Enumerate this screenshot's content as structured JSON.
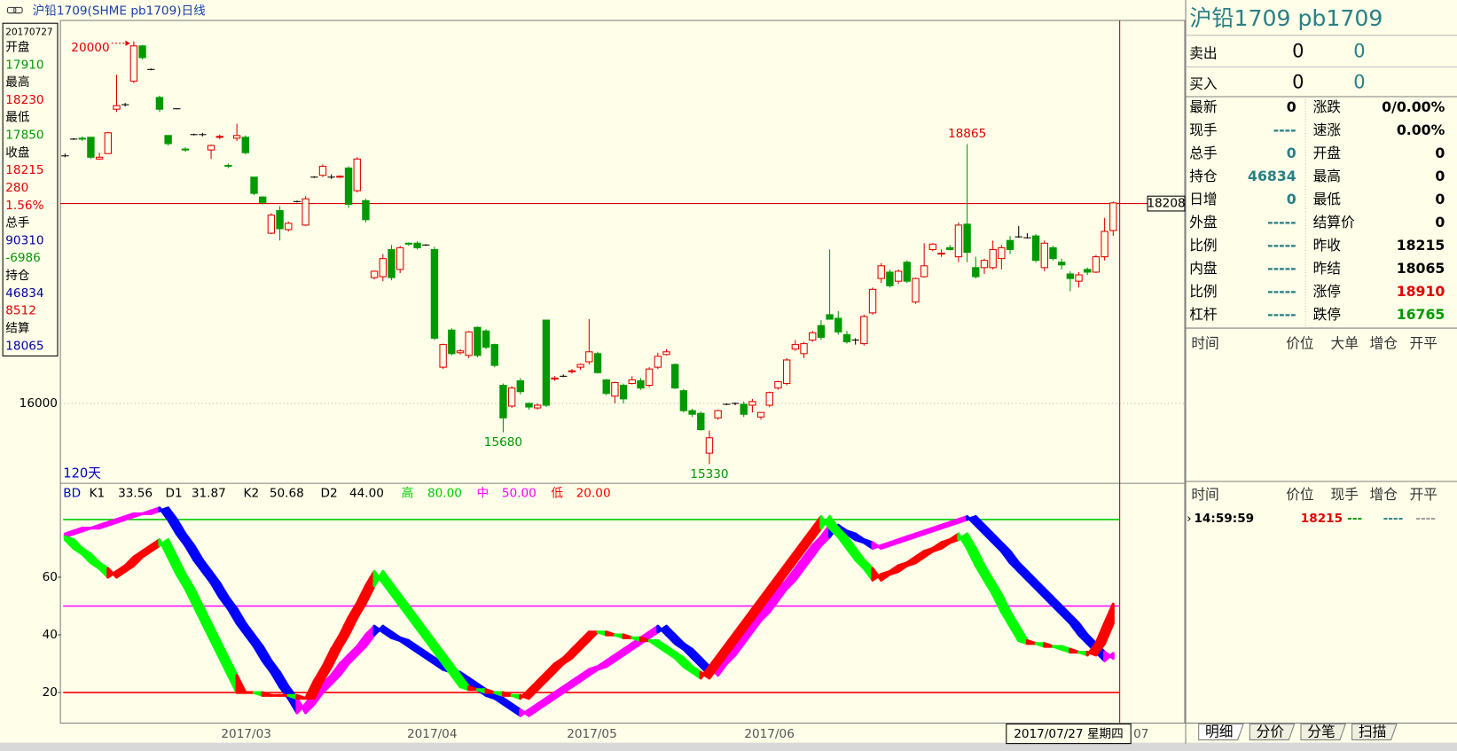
{
  "window_title": "沪铅1709(SHME pb1709)日线",
  "info_box": {
    "date": "20170727",
    "rows": [
      {
        "text": "开盘",
        "color": "#000000"
      },
      {
        "text": 17910,
        "color": "#009900"
      },
      {
        "text": "最高",
        "color": "#000000"
      },
      {
        "text": 18230,
        "color": "#e00000"
      },
      {
        "text": "最低",
        "color": "#000000"
      },
      {
        "text": 17850,
        "color": "#009900"
      },
      {
        "text": "收盘",
        "color": "#000000"
      },
      {
        "text": 18215,
        "color": "#e00000"
      },
      {
        "text": 280,
        "color": "#e00000"
      },
      {
        "text": "1.56%",
        "color": "#e00000"
      },
      {
        "text": "总手",
        "color": "#000000"
      },
      {
        "text": 90310,
        "color": "#0000a0"
      },
      {
        "text": -6986,
        "color": "#009900"
      },
      {
        "text": "持仓",
        "color": "#000000"
      },
      {
        "text": 46834,
        "color": "#0000a0"
      },
      {
        "text": 8512,
        "color": "#e00000"
      },
      {
        "text": "结算",
        "color": "#000000"
      },
      {
        "text": 18065,
        "color": "#0000a0"
      }
    ]
  },
  "chart": {
    "days_label": "120天",
    "ylim": [
      15117,
      20231
    ],
    "yticks": [
      16000
    ],
    "up_color": "#e00000",
    "down_color": "#009900",
    "price_line": 18208,
    "annotations": [
      {
        "value": 20000,
        "color": "#e00000",
        "arrow": true
      },
      {
        "value": 18865,
        "color": "#e00000"
      },
      {
        "value": 15680,
        "color": "#009900"
      },
      {
        "value": 15330,
        "color": "#009900"
      }
    ],
    "xlabels": [
      "2017/03",
      "2017/04",
      "2017/05",
      "2017/06",
      "07"
    ],
    "cursor_date": "2017/07/27 星期四",
    "candles": [
      [
        18735,
        18760,
        18720,
        18735
      ],
      [
        18920,
        18930,
        18910,
        18920
      ],
      [
        18930,
        18950,
        18900,
        18920
      ],
      [
        18940,
        18940,
        18700,
        18720
      ],
      [
        18700,
        18770,
        18690,
        18720
      ],
      [
        18760,
        19000,
        18760,
        18990
      ],
      [
        19250,
        19630,
        19220,
        19290
      ],
      [
        19300,
        19320,
        19280,
        19300
      ],
      [
        19560,
        20000,
        19540,
        19950
      ],
      [
        19950,
        19960,
        19800,
        19820
      ],
      [
        19690,
        19700,
        19680,
        19690
      ],
      [
        19380,
        19400,
        19220,
        19250
      ],
      [
        18960,
        18960,
        18850,
        18870
      ],
      [
        19255,
        19260,
        19250,
        19255
      ],
      [
        18810,
        18830,
        18780,
        18800
      ],
      [
        18970,
        18980,
        18960,
        18970
      ],
      [
        18970,
        18990,
        18950,
        18970
      ],
      [
        18800,
        18860,
        18700,
        18850
      ],
      [
        18940,
        18970,
        18920,
        18950
      ],
      [
        18630,
        18650,
        18600,
        18620
      ],
      [
        18930,
        19090,
        18900,
        18960
      ],
      [
        18940,
        18960,
        18750,
        18770
      ],
      [
        18500,
        18500,
        18300,
        18320
      ],
      [
        18280,
        18290,
        18200,
        18220
      ],
      [
        17880,
        18100,
        17870,
        18080
      ],
      [
        18130,
        18180,
        17800,
        17930
      ],
      [
        17920,
        18010,
        17900,
        17990
      ],
      [
        18230,
        18240,
        18220,
        18230
      ],
      [
        17970,
        18290,
        17960,
        18260
      ],
      [
        18500,
        18510,
        18490,
        18500
      ],
      [
        18520,
        18640,
        18500,
        18620
      ],
      [
        18500,
        18530,
        18480,
        18500
      ],
      [
        18500,
        18520,
        18490,
        18510
      ],
      [
        18600,
        18620,
        18160,
        18200
      ],
      [
        18350,
        18720,
        18330,
        18700
      ],
      [
        18240,
        18260,
        18000,
        18030
      ],
      [
        17390,
        17470,
        17370,
        17460
      ],
      [
        17400,
        17650,
        17350,
        17600
      ],
      [
        17700,
        17750,
        17360,
        17390
      ],
      [
        17480,
        17740,
        17440,
        17720
      ],
      [
        17770,
        17780,
        17740,
        17760
      ],
      [
        17770,
        17790,
        17700,
        17720
      ],
      [
        17750,
        17760,
        17740,
        17750
      ],
      [
        17700,
        17730,
        16700,
        16720
      ],
      [
        16400,
        16660,
        16380,
        16650
      ],
      [
        16810,
        16830,
        16530,
        16550
      ],
      [
        16560,
        16600,
        16540,
        16580
      ],
      [
        16530,
        16800,
        16500,
        16790
      ],
      [
        16840,
        16850,
        16510,
        16530
      ],
      [
        16800,
        16820,
        16600,
        16620
      ],
      [
        16650,
        16660,
        16400,
        16420
      ],
      [
        16200,
        16220,
        15680,
        15840
      ],
      [
        15970,
        16190,
        15950,
        16170
      ],
      [
        16250,
        16280,
        16100,
        16130
      ],
      [
        16000,
        16010,
        15930,
        15960
      ],
      [
        15950,
        16000,
        15930,
        15980
      ],
      [
        16920,
        16920,
        15960,
        15980
      ],
      [
        16270,
        16300,
        16250,
        16280
      ],
      [
        16300,
        16320,
        16290,
        16300
      ],
      [
        16350,
        16380,
        16330,
        16360
      ],
      [
        16400,
        16440,
        16370,
        16430
      ],
      [
        16460,
        16930,
        16430,
        16570
      ],
      [
        16550,
        16570,
        16330,
        16340
      ],
      [
        16260,
        16270,
        16090,
        16110
      ],
      [
        16080,
        16240,
        16000,
        16230
      ],
      [
        16200,
        16220,
        16000,
        16050
      ],
      [
        16220,
        16300,
        16210,
        16260
      ],
      [
        16250,
        16280,
        16150,
        16170
      ],
      [
        16200,
        16400,
        16180,
        16380
      ],
      [
        16400,
        16560,
        16380,
        16520
      ],
      [
        16540,
        16600,
        16530,
        16570
      ],
      [
        16430,
        16440,
        16160,
        16170
      ],
      [
        16140,
        16160,
        15900,
        15920
      ],
      [
        15920,
        15940,
        15850,
        15880
      ],
      [
        15890,
        15910,
        15700,
        15710
      ],
      [
        15450,
        15700,
        15330,
        15620
      ],
      [
        15840,
        15930,
        15820,
        15920
      ],
      [
        15990,
        16000,
        15980,
        15990
      ],
      [
        16000,
        16010,
        15980,
        16000
      ],
      [
        15990,
        16020,
        15850,
        15880
      ],
      [
        15980,
        16050,
        15900,
        16020
      ],
      [
        15850,
        15900,
        15820,
        15900
      ],
      [
        15980,
        16130,
        15960,
        16120
      ],
      [
        16170,
        16250,
        16150,
        16240
      ],
      [
        16220,
        16500,
        16200,
        16480
      ],
      [
        16600,
        16700,
        16580,
        16650
      ],
      [
        16550,
        16680,
        16500,
        16660
      ],
      [
        16700,
        16800,
        16680,
        16780
      ],
      [
        16860,
        16920,
        16700,
        16730
      ],
      [
        16980,
        17700,
        16950,
        16930
      ],
      [
        16940,
        17020,
        16760,
        16790
      ],
      [
        16760,
        16800,
        16660,
        16680
      ],
      [
        16700,
        16720,
        16650,
        16700
      ],
      [
        16660,
        16980,
        16640,
        16960
      ],
      [
        17000,
        17280,
        16980,
        17260
      ],
      [
        17380,
        17550,
        17330,
        17520
      ],
      [
        17450,
        17480,
        17280,
        17300
      ],
      [
        17350,
        17480,
        17320,
        17460
      ],
      [
        17560,
        17580,
        17330,
        17350
      ],
      [
        17120,
        17390,
        17100,
        17380
      ],
      [
        17400,
        17770,
        17390,
        17520
      ],
      [
        17700,
        17770,
        17680,
        17760
      ],
      [
        17650,
        17700,
        17620,
        17660
      ],
      [
        17720,
        17750,
        17690,
        17700
      ],
      [
        17620,
        18000,
        17560,
        17970
      ],
      [
        17980,
        18865,
        17560,
        17670
      ],
      [
        17500,
        17620,
        17380,
        17400
      ],
      [
        17500,
        17600,
        17430,
        17580
      ],
      [
        17500,
        17800,
        17480,
        17700
      ],
      [
        17600,
        17750,
        17480,
        17720
      ],
      [
        17800,
        17850,
        17650,
        17700
      ],
      [
        17840,
        17960,
        17830,
        17840
      ],
      [
        17830,
        17880,
        17820,
        17830
      ],
      [
        17850,
        17870,
        17560,
        17580
      ],
      [
        17500,
        17800,
        17460,
        17770
      ],
      [
        17720,
        17740,
        17580,
        17600
      ],
      [
        17560,
        17600,
        17480,
        17530
      ],
      [
        17430,
        17460,
        17240,
        17380
      ],
      [
        17350,
        17450,
        17280,
        17420
      ],
      [
        17480,
        17500,
        17420,
        17450
      ],
      [
        17450,
        17640,
        17440,
        17620
      ],
      [
        17620,
        18050,
        17580,
        17900
      ],
      [
        17910,
        18230,
        17850,
        18215
      ]
    ]
  },
  "indicator": {
    "name": "BD",
    "params": [
      {
        "name": "K1",
        "value": 33.56
      },
      {
        "name": "D1",
        "value": 31.87
      },
      {
        "name": "K2",
        "value": 50.68
      },
      {
        "name": "D2",
        "value": {
          "value": 44,
          "label": "44.00"
        }
      }
    ],
    "levels": [
      {
        "name": "高",
        "value": {
          "value": 80,
          "label": "80.00"
        },
        "color": "#00cc00"
      },
      {
        "name": "中",
        "value": {
          "value": 50,
          "label": "50.00"
        },
        "color": "#ff00ff"
      },
      {
        "name": "低",
        "value": {
          "value": 20,
          "label": "20.00"
        },
        "color": "#ff0000"
      }
    ],
    "ylim": [
      9.4,
      86.1
    ],
    "yticks": [
      20,
      40,
      60
    ],
    "k1_colors": [
      "#ff00ff",
      "#0000ff"
    ],
    "k2_colors": [
      "#ff0000",
      "#00ff00"
    ],
    "k1": [
      75,
      76,
      77,
      77,
      78,
      79,
      80,
      81,
      82,
      82,
      83,
      84,
      80,
      75,
      71,
      66,
      62,
      58,
      53,
      49,
      44,
      40,
      36,
      31,
      27,
      22,
      18,
      13,
      16,
      20,
      23,
      26,
      30,
      33,
      36,
      40,
      43,
      41,
      39,
      38,
      36,
      34,
      32,
      30,
      28,
      27,
      25,
      23,
      21,
      19,
      18,
      16,
      14,
      12,
      14,
      16,
      18,
      20,
      22,
      24,
      26,
      28,
      29,
      31,
      33,
      35,
      37,
      39,
      41,
      43,
      40,
      37,
      35,
      32,
      29,
      26,
      30,
      33,
      37,
      41,
      45,
      48,
      52,
      56,
      59,
      63,
      67,
      71,
      74,
      78,
      76,
      75,
      73,
      72,
      70,
      71,
      72,
      73,
      74,
      75,
      76,
      77,
      78,
      79,
      80,
      81,
      78,
      75,
      72,
      69,
      65,
      62,
      59,
      56,
      53,
      50,
      47,
      44,
      40,
      37,
      34,
      31,
      33.56
    ],
    "d1": [
      74,
      75,
      76,
      77,
      77,
      78,
      79,
      80,
      81,
      82,
      82,
      83,
      84,
      80,
      75,
      71,
      66,
      62,
      58,
      53,
      49,
      44,
      40,
      36,
      31,
      27,
      22,
      18,
      13,
      16,
      20,
      23,
      26,
      30,
      33,
      36,
      40,
      43,
      41,
      39,
      38,
      36,
      34,
      32,
      30,
      28,
      27,
      25,
      23,
      21,
      19,
      18,
      16,
      14,
      12,
      14,
      16,
      18,
      20,
      22,
      24,
      26,
      28,
      29,
      31,
      33,
      35,
      37,
      39,
      41,
      43,
      40,
      37,
      35,
      32,
      29,
      26,
      30,
      33,
      37,
      41,
      45,
      48,
      52,
      56,
      59,
      63,
      67,
      71,
      74,
      78,
      76,
      75,
      73,
      72,
      70,
      71,
      72,
      73,
      74,
      75,
      76,
      77,
      78,
      79,
      80,
      81,
      78,
      75,
      72,
      69,
      65,
      62,
      59,
      56,
      53,
      50,
      47,
      44,
      40,
      37,
      34,
      31.87
    ],
    "k2": [
      73,
      70,
      68,
      65,
      63,
      60,
      62,
      64,
      67,
      69,
      71,
      73,
      67,
      61,
      56,
      50,
      44,
      38,
      32,
      26,
      20,
      20,
      20,
      19,
      19,
      19,
      19,
      18,
      18,
      24,
      29,
      35,
      40,
      46,
      51,
      57,
      62,
      58,
      54,
      50,
      46,
      42,
      38,
      34,
      30,
      26,
      22,
      21,
      21,
      20,
      20,
      19,
      19,
      18,
      21,
      24,
      27,
      30,
      32,
      35,
      38,
      41,
      41,
      40,
      40,
      39,
      39,
      38,
      38,
      36,
      34,
      32,
      29,
      27,
      25,
      29,
      33,
      37,
      41,
      45,
      49,
      53,
      57,
      61,
      65,
      69,
      73,
      77,
      81,
      77,
      74,
      70,
      66,
      63,
      59,
      61,
      62,
      64,
      65,
      67,
      69,
      70,
      72,
      73,
      75,
      70,
      64,
      59,
      54,
      48,
      43,
      38,
      37,
      37,
      36,
      36,
      35,
      34,
      34,
      33,
      37,
      44,
      50.68
    ],
    "d2": [
      74,
      73,
      70,
      68,
      65,
      63,
      60,
      62,
      64,
      67,
      69,
      71,
      73,
      67,
      61,
      56,
      50,
      44,
      38,
      32,
      26,
      20,
      20,
      20,
      19,
      19,
      19,
      19,
      18,
      18,
      24,
      29,
      35,
      40,
      46,
      51,
      57,
      62,
      58,
      54,
      50,
      46,
      42,
      38,
      34,
      30,
      26,
      22,
      21,
      21,
      20,
      20,
      19,
      19,
      18,
      21,
      24,
      27,
      30,
      32,
      35,
      38,
      41,
      41,
      40,
      40,
      39,
      39,
      38,
      38,
      36,
      34,
      32,
      29,
      27,
      25,
      29,
      33,
      37,
      41,
      45,
      49,
      53,
      57,
      61,
      65,
      69,
      73,
      77,
      81,
      77,
      74,
      70,
      66,
      63,
      59,
      61,
      62,
      64,
      65,
      67,
      69,
      70,
      72,
      73,
      75,
      70,
      64,
      59,
      54,
      48,
      43,
      38,
      37,
      37,
      36,
      36,
      35,
      34,
      34,
      33,
      37,
      44
    ]
  },
  "quote": {
    "title": "沪铅1709  pb1709",
    "sell": {
      "label": "卖出",
      "price": 0,
      "volume": 0
    },
    "buy": {
      "label": "买入",
      "price": 0,
      "volume": 0
    },
    "rows": [
      [
        "最新",
        0,
        "涨跌",
        "0/0.00%"
      ],
      [
        "现手",
        "----",
        "速涨",
        "0.00%"
      ],
      [
        "总手",
        0,
        "开盘",
        0
      ],
      [
        "持仓",
        46834,
        "最高",
        0
      ],
      [
        "日增",
        0,
        "最低",
        0
      ],
      [
        "外盘",
        "-----",
        "结算价",
        0
      ],
      [
        "比例",
        "-----",
        "昨收",
        18215
      ],
      [
        "内盘",
        "-----",
        "昨结",
        18065
      ],
      [
        "比例",
        "-----",
        "涨停",
        18910
      ],
      [
        "杠杆",
        "-----",
        "跌停",
        16765
      ]
    ],
    "trade_header": [
      "时间",
      "价位",
      "大单",
      "增仓",
      "开平"
    ],
    "tick_header": [
      "时间",
      "价位",
      "现手",
      "增仓",
      "开平"
    ],
    "ticks": [
      [
        "14:59:59",
        18215,
        "---",
        "----",
        "----"
      ]
    ],
    "tabs": [
      "明细",
      "分价",
      "分笔",
      "扫描"
    ]
  }
}
